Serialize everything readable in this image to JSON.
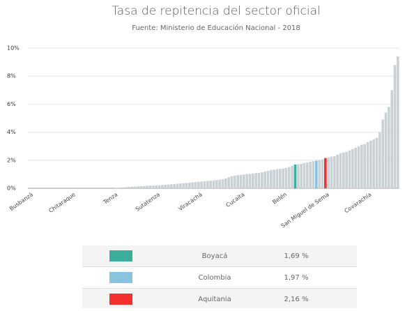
{
  "chart_data": {
    "type": "bar",
    "title": "Tasa de repitencia del sector oficial",
    "subtitle": "Fuente: Ministerio de Educación Nacional - 2018",
    "categories": [
      null,
      "Busbanzá",
      null,
      null,
      null,
      null,
      null,
      null,
      null,
      null,
      null,
      null,
      null,
      null,
      null,
      "Chitaraque",
      null,
      null,
      null,
      null,
      null,
      null,
      null,
      null,
      null,
      null,
      null,
      null,
      null,
      "Tenza",
      null,
      null,
      null,
      null,
      null,
      null,
      null,
      null,
      null,
      null,
      null,
      null,
      null,
      "Sutatenza",
      null,
      null,
      null,
      null,
      null,
      null,
      null,
      null,
      null,
      null,
      null,
      null,
      null,
      "Viracachá",
      null,
      null,
      null,
      null,
      null,
      null,
      null,
      null,
      null,
      null,
      null,
      null,
      null,
      "Cucaita",
      null,
      null,
      null,
      null,
      null,
      null,
      null,
      null,
      null,
      null,
      null,
      null,
      null,
      "Belén",
      null,
      null,
      null,
      null,
      null,
      null,
      null,
      null,
      null,
      null,
      null,
      null,
      null,
      "San Miguel de Sema",
      null,
      null,
      null,
      null,
      null,
      null,
      null,
      null,
      null,
      null,
      null,
      null,
      null,
      "Covarachía",
      null,
      null,
      null,
      null,
      null,
      null,
      null,
      null,
      null
    ],
    "values": [
      0,
      0,
      0,
      0,
      0,
      0,
      0,
      0,
      0,
      0,
      0,
      0,
      0,
      0,
      0,
      0,
      0,
      0,
      0,
      0,
      0,
      0,
      0,
      0,
      0,
      0,
      0,
      0,
      0,
      0.03,
      0.05,
      0.06,
      0.08,
      0.1,
      0.11,
      0.12,
      0.14,
      0.15,
      0.16,
      0.18,
      0.19,
      0.2,
      0.21,
      0.22,
      0.24,
      0.25,
      0.27,
      0.29,
      0.3,
      0.32,
      0.34,
      0.36,
      0.38,
      0.4,
      0.42,
      0.44,
      0.46,
      0.48,
      0.5,
      0.52,
      0.54,
      0.56,
      0.58,
      0.6,
      0.64,
      0.7,
      0.78,
      0.86,
      0.9,
      0.94,
      0.96,
      0.98,
      1.0,
      1.02,
      1.05,
      1.08,
      1.1,
      1.14,
      1.2,
      1.25,
      1.3,
      1.33,
      1.36,
      1.38,
      1.4,
      1.45,
      1.52,
      1.6,
      1.69,
      1.72,
      1.75,
      1.8,
      1.85,
      1.9,
      1.94,
      1.97,
      2.0,
      2.05,
      2.16,
      2.2,
      2.25,
      2.3,
      2.4,
      2.5,
      2.55,
      2.6,
      2.7,
      2.8,
      2.9,
      3.0,
      3.1,
      3.15,
      3.3,
      3.4,
      3.5,
      3.6,
      4.0,
      4.9,
      5.4,
      5.8,
      7.0,
      8.8,
      9.4
    ],
    "color": "#c9d1d5",
    "highlights": [
      {
        "name": "Boyacá",
        "color": "#3aae99",
        "value": 1.69,
        "value_label": "1,69 %"
      },
      {
        "name": "Colombia",
        "color": "#88c3e0",
        "value": 1.97,
        "value_label": "1,97 %"
      },
      {
        "name": "Aquitania",
        "color": "#f2302e",
        "value": 2.16,
        "value_label": "2,16 %"
      }
    ],
    "ylim": [
      0,
      10
    ],
    "yticks": [
      {
        "value": 0,
        "label": "0%"
      },
      {
        "value": 2,
        "label": "2%"
      },
      {
        "value": 4,
        "label": "4%"
      },
      {
        "value": 6,
        "label": "6%"
      },
      {
        "value": 8,
        "label": "8%"
      },
      {
        "value": 10,
        "label": "10%"
      }
    ],
    "grid": true
  }
}
